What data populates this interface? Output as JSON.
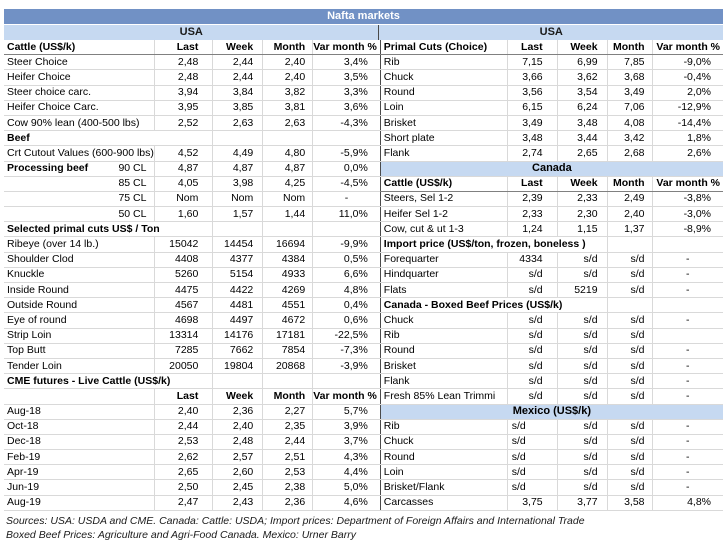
{
  "title": "Nafta markets",
  "colors": {
    "title_bar_bg": "#7191c5",
    "title_bar_text": "#ffffff",
    "region_band_bg": "#c6d9f1",
    "gridline": "#d9d9d9",
    "half_divider": "#4a4a4a",
    "header_rule": "#808080"
  },
  "columns": [
    "Last",
    "Week",
    "Month",
    "Var month %"
  ],
  "left": {
    "region": "USA",
    "rows": [
      {
        "t": "header",
        "l": "Cattle (US$/k)",
        "v": [
          "Last",
          "Week",
          "Month",
          "Var month %"
        ]
      },
      {
        "t": "d",
        "l": "Steer Choice",
        "v": [
          "2,48",
          "2,44",
          "2,40",
          "3,4%"
        ]
      },
      {
        "t": "d",
        "l": "Heifer Choice",
        "v": [
          "2,48",
          "2,44",
          "2,40",
          "3,5%"
        ]
      },
      {
        "t": "d",
        "l": "Steer choice carc.",
        "v": [
          "3,94",
          "3,84",
          "3,82",
          "3,3%"
        ]
      },
      {
        "t": "d",
        "l": "Heifer Choice Carc.",
        "v": [
          "3,95",
          "3,85",
          "3,81",
          "3,6%"
        ]
      },
      {
        "t": "d",
        "l": "Cow 90% lean (400-500 lbs)",
        "v": [
          "2,52",
          "2,63",
          "2,63",
          "-4,3%"
        ]
      },
      {
        "t": "sec",
        "l": "Beef"
      },
      {
        "t": "d",
        "l": "Crt Cutout Values (600-900 lbs)",
        "v": [
          "4,52",
          "4,49",
          "4,80",
          "-5,9%"
        ]
      },
      {
        "t": "d",
        "l": "Processing beef",
        "lb": true,
        "lr": "90 CL",
        "v": [
          "4,87",
          "4,87",
          "4,87",
          "0,0%"
        ]
      },
      {
        "t": "d",
        "l": "",
        "lr": "85 CL",
        "v": [
          "4,05",
          "3,98",
          "4,25",
          "-4,5%"
        ]
      },
      {
        "t": "d",
        "l": "",
        "lr": "75 CL",
        "v": [
          "Nom",
          "Nom",
          "Nom",
          "-"
        ]
      },
      {
        "t": "d",
        "l": "",
        "lr": "50 CL",
        "v": [
          "1,60",
          "1,57",
          "1,44",
          "11,0%"
        ]
      },
      {
        "t": "sec",
        "l": "Selected primal cuts US$ / Ton"
      },
      {
        "t": "d",
        "l": "Ribeye (over 14 lb.)",
        "v": [
          "15042",
          "14454",
          "16694",
          "-9,9%"
        ]
      },
      {
        "t": "d",
        "l": "Shoulder Clod",
        "v": [
          "4408",
          "4377",
          "4384",
          "0,5%"
        ]
      },
      {
        "t": "d",
        "l": "Knuckle",
        "v": [
          "5260",
          "5154",
          "4933",
          "6,6%"
        ]
      },
      {
        "t": "d",
        "l": "Inside Round",
        "v": [
          "4475",
          "4422",
          "4269",
          "4,8%"
        ]
      },
      {
        "t": "d",
        "l": "Outside Round",
        "v": [
          "4567",
          "4481",
          "4551",
          "0,4%"
        ]
      },
      {
        "t": "d",
        "l": "Eye of round",
        "v": [
          "4698",
          "4497",
          "4672",
          "0,6%"
        ]
      },
      {
        "t": "d",
        "l": "Strip Loin",
        "v": [
          "13314",
          "14176",
          "17181",
          "-22,5%"
        ]
      },
      {
        "t": "d",
        "l": "Top Butt",
        "v": [
          "7285",
          "7662",
          "7854",
          "-7,3%"
        ]
      },
      {
        "t": "d",
        "l": "Tender Loin",
        "v": [
          "20050",
          "19804",
          "20868",
          "-3,9%"
        ]
      },
      {
        "t": "sec",
        "l": "CME futures - Live Cattle (US$/k)"
      },
      {
        "t": "sub",
        "l": "",
        "v": [
          "Last",
          "Week",
          "Month",
          "Var month %"
        ]
      },
      {
        "t": "d",
        "l": "Aug-18",
        "v": [
          "2,40",
          "2,36",
          "2,27",
          "5,7%"
        ]
      },
      {
        "t": "d",
        "l": "Oct-18",
        "v": [
          "2,44",
          "2,40",
          "2,35",
          "3,9%"
        ]
      },
      {
        "t": "d",
        "l": "Dec-18",
        "v": [
          "2,53",
          "2,48",
          "2,44",
          "3,7%"
        ]
      },
      {
        "t": "d",
        "l": "Feb-19",
        "v": [
          "2,62",
          "2,57",
          "2,51",
          "4,3%"
        ]
      },
      {
        "t": "d",
        "l": "Apr-19",
        "v": [
          "2,65",
          "2,60",
          "2,53",
          "4,4%"
        ]
      },
      {
        "t": "d",
        "l": "Jun-19",
        "v": [
          "2,50",
          "2,45",
          "2,38",
          "5,0%"
        ]
      },
      {
        "t": "d",
        "l": "Aug-19",
        "v": [
          "2,47",
          "2,43",
          "2,36",
          "4,6%"
        ]
      }
    ]
  },
  "right": {
    "region": "USA",
    "rows": [
      {
        "t": "header",
        "l": "Primal Cuts (Choice)",
        "v": [
          "Last",
          "Week",
          "Month",
          "Var month %"
        ]
      },
      {
        "t": "d",
        "l": "Rib",
        "v": [
          "7,15",
          "6,99",
          "7,85",
          "-9,0%"
        ]
      },
      {
        "t": "d",
        "l": "Chuck",
        "v": [
          "3,66",
          "3,62",
          "3,68",
          "-0,4%"
        ]
      },
      {
        "t": "d",
        "l": "Round",
        "v": [
          "3,56",
          "3,54",
          "3,49",
          "2,0%"
        ]
      },
      {
        "t": "d",
        "l": "Loin",
        "v": [
          "6,15",
          "6,24",
          "7,06",
          "-12,9%"
        ]
      },
      {
        "t": "d",
        "l": "Brisket",
        "v": [
          "3,49",
          "3,48",
          "4,08",
          "-14,4%"
        ]
      },
      {
        "t": "d",
        "l": "Short plate",
        "v": [
          "3,48",
          "3,44",
          "3,42",
          "1,8%"
        ]
      },
      {
        "t": "d",
        "l": "Flank",
        "v": [
          "2,74",
          "2,65",
          "2,68",
          "2,6%"
        ]
      },
      {
        "t": "band",
        "l": "Canada"
      },
      {
        "t": "header",
        "l": "Cattle (US$/k)",
        "v": [
          "Last",
          "Week",
          "Month",
          "Var month %"
        ]
      },
      {
        "t": "d",
        "l": "Steers, Sel 1-2",
        "v": [
          "2,39",
          "2,33",
          "2,49",
          "-3,8%"
        ]
      },
      {
        "t": "d",
        "l": "Heifer Sel 1-2",
        "v": [
          "2,33",
          "2,30",
          "2,40",
          "-3,0%"
        ]
      },
      {
        "t": "d",
        "l": "Cow, cut & ut 1-3",
        "v": [
          "1,24",
          "1,15",
          "1,37",
          "-8,9%"
        ]
      },
      {
        "t": "sec",
        "l": "Import price (US$/ton, frozen, boneless )"
      },
      {
        "t": "d",
        "l": "Forequarter",
        "v": [
          "4334",
          "s/d",
          "s/d",
          "-"
        ]
      },
      {
        "t": "d",
        "l": "Hindquarter",
        "v": [
          "s/d",
          "s/d",
          "s/d",
          "-"
        ]
      },
      {
        "t": "d",
        "l": "Flats",
        "v": [
          "s/d",
          "5219",
          "s/d",
          "-"
        ]
      },
      {
        "t": "sec",
        "l": "Canada - Boxed Beef Prices (US$/k)"
      },
      {
        "t": "d",
        "l": "Chuck",
        "v": [
          "s/d",
          "s/d",
          "s/d",
          "-"
        ]
      },
      {
        "t": "d",
        "l": "Rib",
        "v": [
          "s/d",
          "s/d",
          "s/d",
          ""
        ]
      },
      {
        "t": "d",
        "l": "Round",
        "v": [
          "s/d",
          "s/d",
          "s/d",
          "-"
        ]
      },
      {
        "t": "d",
        "l": "Brisket",
        "v": [
          "s/d",
          "s/d",
          "s/d",
          "-"
        ]
      },
      {
        "t": "d",
        "l": "Flank",
        "v": [
          "s/d",
          "s/d",
          "s/d",
          "-"
        ]
      },
      {
        "t": "d",
        "l": "Fresh 85% Lean Trimmi",
        "v": [
          "s/d",
          "s/d",
          "s/d",
          "-"
        ]
      },
      {
        "t": "band",
        "l": "Mexico (US$/k)"
      },
      {
        "t": "d",
        "l": "Rib",
        "fl": true,
        "v": [
          "s/d",
          "s/d",
          "s/d",
          "-"
        ]
      },
      {
        "t": "d",
        "l": "Chuck",
        "fl": true,
        "v": [
          "s/d",
          "s/d",
          "s/d",
          "-"
        ]
      },
      {
        "t": "d",
        "l": "Round",
        "fl": true,
        "v": [
          "s/d",
          "s/d",
          "s/d",
          "-"
        ]
      },
      {
        "t": "d",
        "l": "Loin",
        "fl": true,
        "v": [
          "s/d",
          "s/d",
          "s/d",
          "-"
        ]
      },
      {
        "t": "d",
        "l": "Brisket/Flank",
        "fl": true,
        "v": [
          "s/d",
          "s/d",
          "s/d",
          "-"
        ]
      },
      {
        "t": "d",
        "l": "Carcasses",
        "v": [
          "3,75",
          "3,77",
          "3,58",
          "4,8%"
        ]
      }
    ]
  },
  "footer": {
    "line1": "Sources: USA: USDA and CME. Canada: Cattle: USDA; Import prices: Department of Foreign Affairs and International Trade",
    "line2": "Boxed Beef Prices: Agriculture and Agri-Food Canada. Mexico: Urner Barry"
  }
}
